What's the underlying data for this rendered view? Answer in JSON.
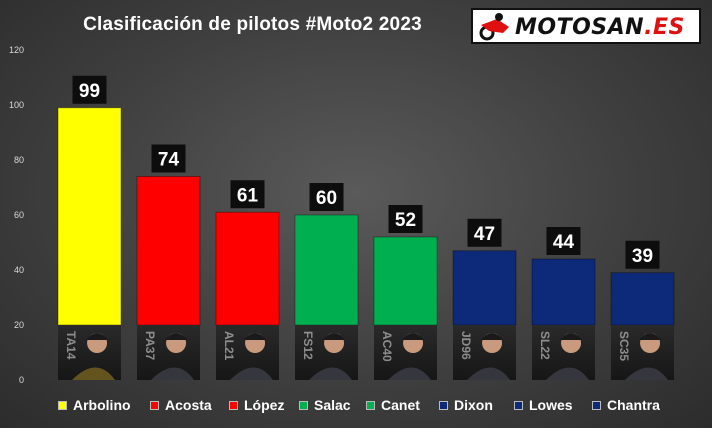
{
  "chart_data": {
    "type": "bar",
    "title": "Clasificación de pilotos #Moto2 2023",
    "categories": [
      "Arbolino",
      "Acosta",
      "López",
      "Salac",
      "Canet",
      "Dixon",
      "Lowes",
      "Chantra"
    ],
    "values": [
      99,
      74,
      61,
      60,
      52,
      47,
      44,
      39
    ],
    "colors": [
      "#ffff00",
      "#ff0000",
      "#ff0000",
      "#00b050",
      "#00b050",
      "#0d2a7a",
      "#0d2a7a",
      "#0d2a7a"
    ],
    "rider_codes": [
      "TA14",
      "PA37",
      "AL21",
      "FS12",
      "AC40",
      "JD96",
      "SL22",
      "SC35"
    ],
    "ylim": [
      0,
      120
    ],
    "yticks": [
      0,
      20,
      40,
      60,
      80,
      100,
      120
    ],
    "grid": false,
    "legend": "bottom",
    "xlabel": "",
    "ylabel": ""
  },
  "logo": {
    "text_main": "MOTOSAN",
    "text_suffix": ".ES"
  }
}
